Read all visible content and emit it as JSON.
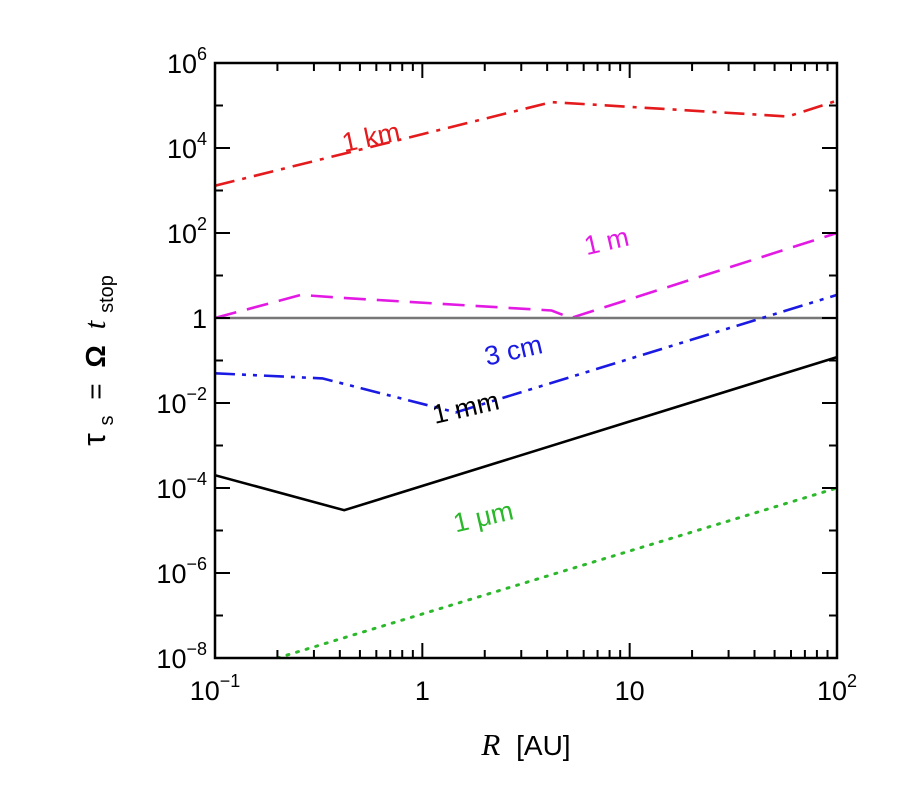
{
  "chart_data": {
    "type": "line",
    "x_scale": "log",
    "y_scale": "log",
    "xlim": [
      0.1,
      100
    ],
    "ylim": [
      1e-08,
      1000000.0
    ],
    "grid": false,
    "legend": "none",
    "xlabel": {
      "var": "R",
      "unit": "[AU]"
    },
    "ylabel": {
      "tau": "τ",
      "tau_sub": "s",
      "eq": "=",
      "omega": "Ω",
      "t": "t",
      "t_sub": "stop"
    },
    "x_ticks": [
      {
        "value": 0.1,
        "base": "10",
        "exp": "−1"
      },
      {
        "value": 1,
        "base": "1",
        "exp": ""
      },
      {
        "value": 10,
        "base": "10",
        "exp": ""
      },
      {
        "value": 100,
        "base": "10",
        "exp": "2"
      }
    ],
    "y_ticks": [
      {
        "value": 1e-08,
        "base": "10",
        "exp": "−8"
      },
      {
        "value": 1e-06,
        "base": "10",
        "exp": "−6"
      },
      {
        "value": 0.0001,
        "base": "10",
        "exp": "−4"
      },
      {
        "value": 0.01,
        "base": "10",
        "exp": "−2"
      },
      {
        "value": 1,
        "base": "1",
        "exp": ""
      },
      {
        "value": 100,
        "base": "10",
        "exp": "2"
      },
      {
        "value": 10000.0,
        "base": "10",
        "exp": "4"
      },
      {
        "value": 1000000.0,
        "base": "10",
        "exp": "6"
      }
    ],
    "series": [
      {
        "name": "1 km",
        "color": "#e41a1c",
        "dash": "dashdot",
        "x": [
          0.1,
          4.2,
          58,
          100
        ],
        "y": [
          1300,
          120000,
          55000,
          130000
        ],
        "label_at": {
          "x": 0.42,
          "y": 8000
        },
        "label_angle": -12
      },
      {
        "name": "1 m",
        "color": "#e31ae3",
        "dash": "dashed",
        "x": [
          0.1,
          0.26,
          0.4,
          4.2,
          5.2,
          100
        ],
        "y": [
          1.0,
          3.5,
          3.0,
          1.5,
          1.0,
          100
        ],
        "label_at": {
          "x": 6.2,
          "y": 30
        },
        "label_angle": -13
      },
      {
        "name": "1",
        "color": "#777777",
        "dash": "solid",
        "x": [
          0.1,
          100
        ],
        "y": [
          1,
          1
        ],
        "label_at": null,
        "label_angle": 0
      },
      {
        "name": "3 cm",
        "color": "#1a1ae3",
        "dash": "dashdotdot",
        "x": [
          0.1,
          0.33,
          1.45,
          100
        ],
        "y": [
          0.05,
          0.038,
          0.006,
          3.5
        ],
        "label_at": {
          "x": 2.05,
          "y": 0.075
        },
        "label_angle": -13
      },
      {
        "name": "1 mm",
        "color": "#000000",
        "dash": "solid",
        "x": [
          0.1,
          0.42,
          100
        ],
        "y": [
          0.0002,
          3e-05,
          0.12
        ],
        "label_at": {
          "x": 1.15,
          "y": 0.0032
        },
        "label_angle": -13
      },
      {
        "name": "1 μm",
        "color": "#2bb82b",
        "dash": "dotted",
        "x": [
          0.2,
          100
        ],
        "y": [
          1e-08,
          0.0001
        ],
        "label_at": {
          "x": 1.45,
          "y": 9e-06
        },
        "label_angle": -13
      }
    ]
  }
}
